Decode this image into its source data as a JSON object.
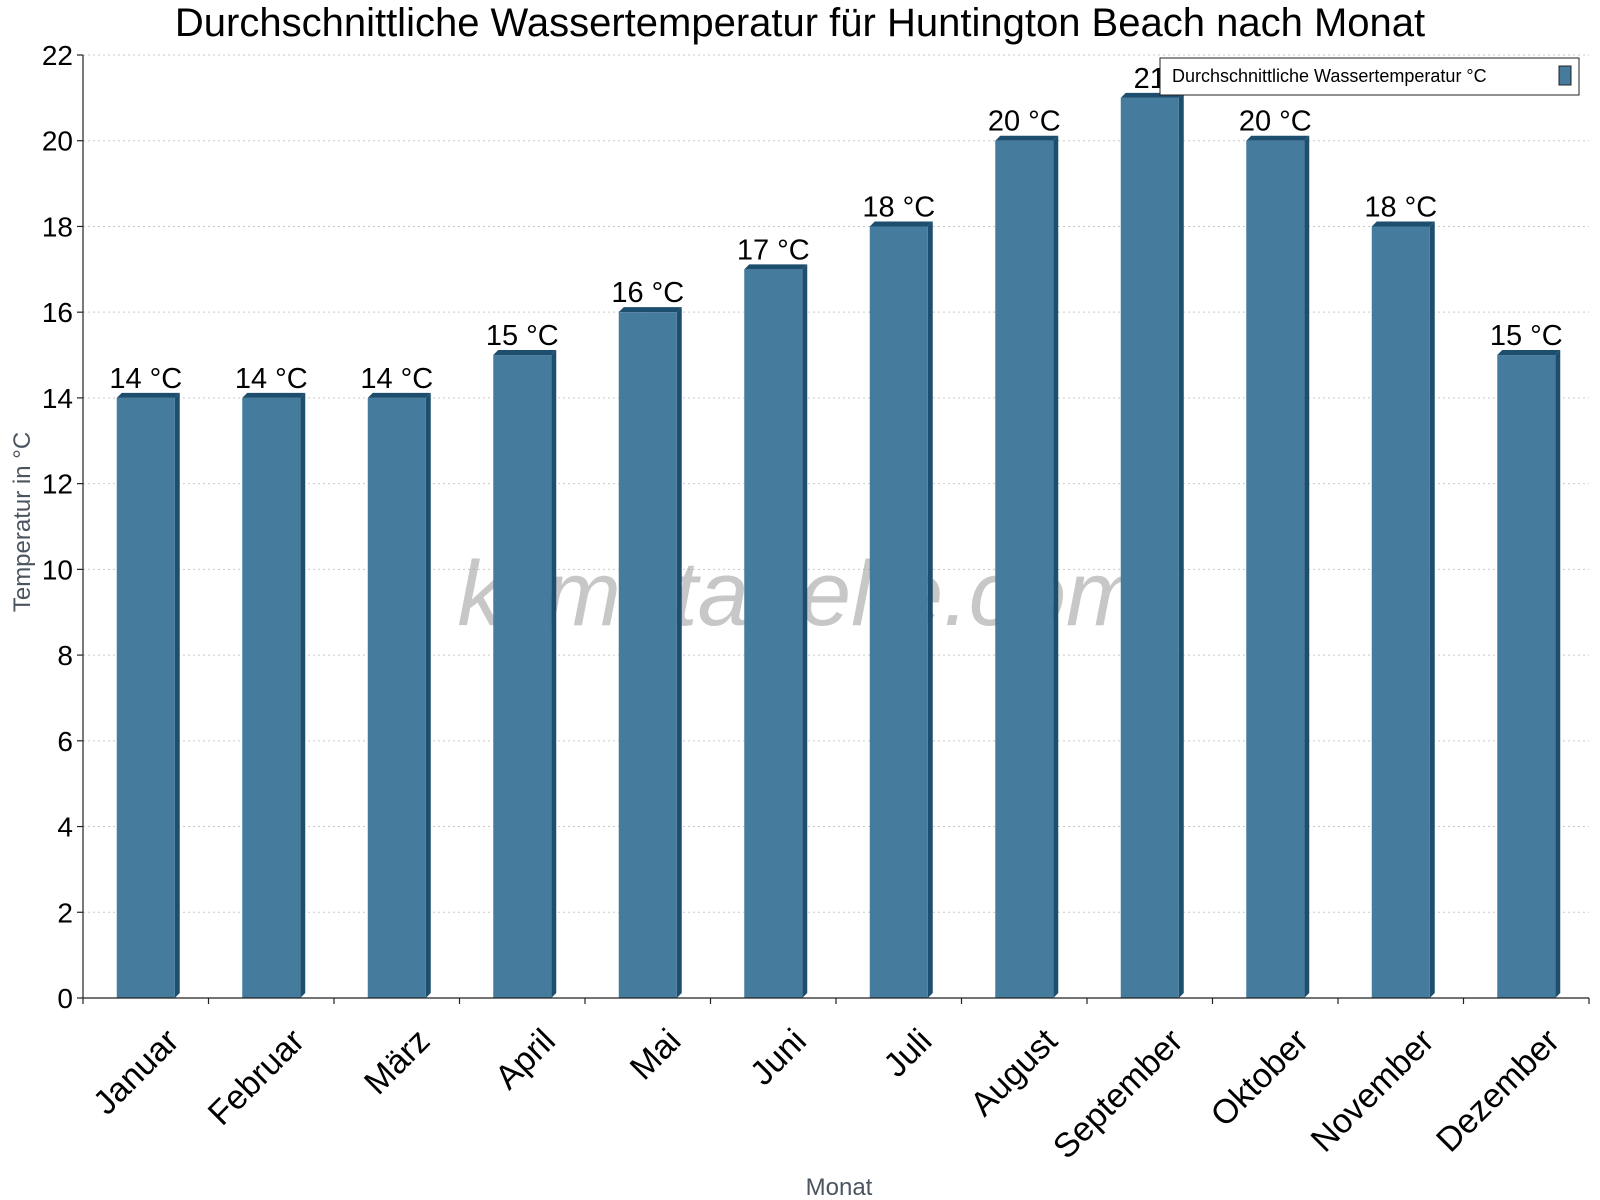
{
  "chart_data": {
    "type": "bar",
    "title": "Durchschnittliche Wassertemperatur für Huntington Beach nach Monat",
    "xlabel": "Monat",
    "ylabel": "Temperatur in °C",
    "categories": [
      "Januar",
      "Februar",
      "März",
      "April",
      "Mai",
      "Juni",
      "Juli",
      "August",
      "September",
      "Oktober",
      "November",
      "Dezember"
    ],
    "series": [
      {
        "name": "Durchschnittliche Wassertemperatur °C",
        "values": [
          14,
          14,
          14,
          15,
          16,
          17,
          18,
          20,
          21,
          20,
          18,
          15
        ],
        "data_labels": [
          "14 °C",
          "14 °C",
          "14 °C",
          "15 °C",
          "16 °C",
          "17 °C",
          "18 °C",
          "20 °C",
          "21",
          "20 °C",
          "18 °C",
          "15 °C"
        ],
        "color": "#457b9d",
        "edge_color": "#1d4e6e"
      }
    ],
    "ylim": [
      0,
      22
    ],
    "yticks": [
      0,
      2,
      4,
      6,
      8,
      10,
      12,
      14,
      16,
      18,
      20,
      22
    ],
    "grid": true,
    "legend_position": "top-right"
  },
  "watermark": "klimatabelle.com",
  "colors": {
    "bar": "#457b9d",
    "bar_side": "#1d4e6e",
    "grid": "#c9c9c9"
  }
}
